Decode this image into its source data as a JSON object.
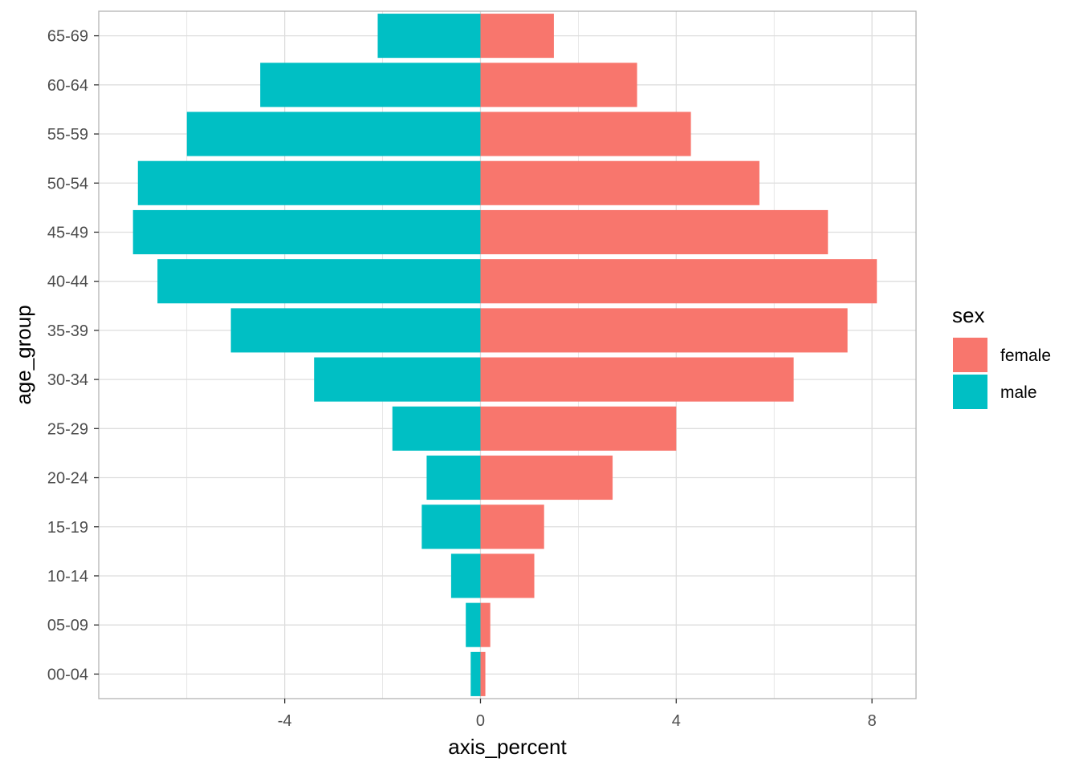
{
  "chart_data": {
    "type": "bar",
    "orientation": "horizontal",
    "title": "",
    "xlabel": "axis_percent",
    "ylabel": "age_group",
    "categories": [
      "00-04",
      "05-09",
      "10-14",
      "15-19",
      "20-24",
      "25-29",
      "30-34",
      "35-39",
      "40-44",
      "45-49",
      "50-54",
      "55-59",
      "60-64",
      "65-69"
    ],
    "series": [
      {
        "name": "female",
        "color": "#F8766D",
        "values": [
          0.1,
          0.2,
          1.1,
          1.3,
          2.7,
          4.0,
          6.4,
          7.5,
          8.1,
          7.1,
          5.7,
          4.3,
          3.2,
          1.5
        ]
      },
      {
        "name": "male",
        "color": "#00BFC4",
        "values": [
          -0.2,
          -0.3,
          -0.6,
          -1.2,
          -1.1,
          -1.8,
          -3.4,
          -5.1,
          -6.6,
          -7.1,
          -7.0,
          -6.0,
          -4.5,
          -2.1
        ]
      }
    ],
    "xlim": [
      -7.8,
      8.9
    ],
    "xticks": [
      -4,
      0,
      4,
      8
    ],
    "xtick_labels": [
      "-4",
      "0",
      "4",
      "8"
    ],
    "grid": true,
    "legend": {
      "title": "sex",
      "position": "right",
      "entries": [
        "female",
        "male"
      ]
    },
    "panel_border_color": "#b3b3b3",
    "grid_color": "#dedede"
  }
}
